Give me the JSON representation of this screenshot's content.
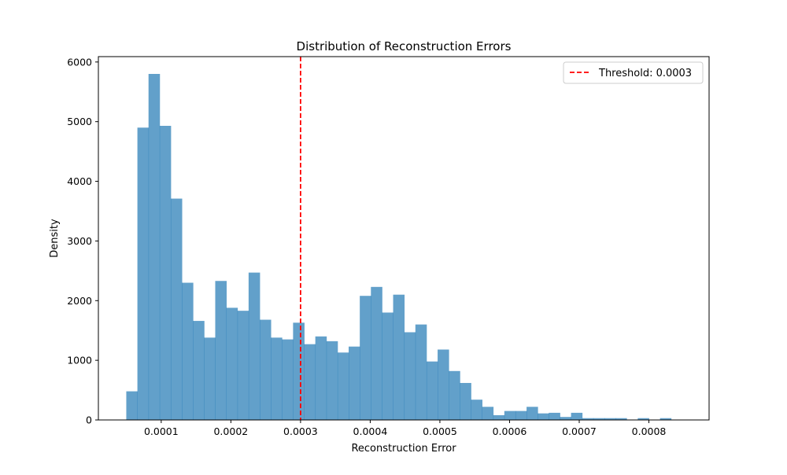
{
  "chart_data": {
    "type": "bar",
    "title": "Distribution of Reconstruction Errors",
    "xlabel": "Reconstruction Error",
    "ylabel": "Density",
    "xlim": [
      9.8e-06,
      0.0008864
    ],
    "ylim": [
      0,
      6090
    ],
    "x_ticks": [
      "0.0001",
      "0.0002",
      "0.0003",
      "0.0004",
      "0.0005",
      "0.0006",
      "0.0007",
      "0.0008"
    ],
    "y_ticks": [
      "0",
      "1000",
      "2000",
      "3000",
      "4000",
      "5000",
      "6000"
    ],
    "bar_color": "#1f77b4",
    "bar_alpha": 0.7,
    "bins": {
      "start": 4.986e-05,
      "width": 1.596e-05,
      "values": [
        480,
        4900,
        5800,
        4930,
        3710,
        2300,
        1660,
        1380,
        2330,
        1880,
        1830,
        2470,
        1680,
        1380,
        1350,
        1630,
        1270,
        1400,
        1320,
        1130,
        1230,
        2080,
        2230,
        1800,
        2100,
        1470,
        1600,
        980,
        1180,
        820,
        620,
        340,
        220,
        80,
        150,
        150,
        220,
        110,
        120,
        50,
        120,
        30,
        30,
        30,
        30,
        0,
        30,
        0,
        30
      ]
    },
    "threshold": {
      "value": 0.0003,
      "color": "#ff0000",
      "style": "dashed",
      "label": "Threshold: 0.0003"
    },
    "legend": {
      "position": "top-right",
      "entries": [
        "Threshold: 0.0003"
      ]
    },
    "grid": false
  }
}
